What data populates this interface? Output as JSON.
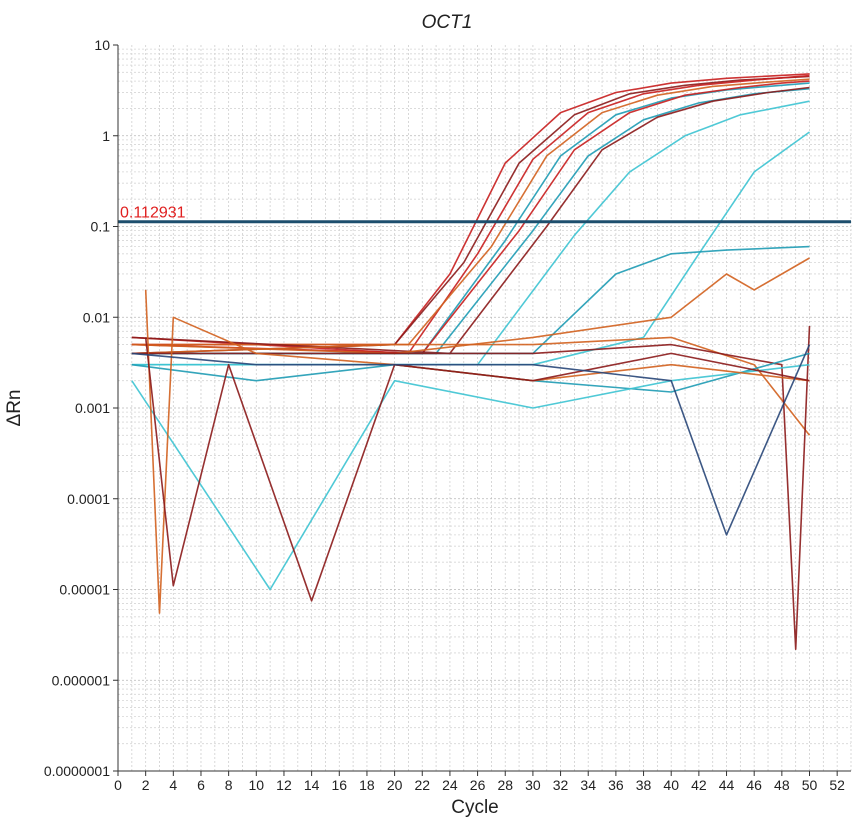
{
  "chart_data": {
    "type": "line",
    "title": "OCT1",
    "xlabel": "Cycle",
    "ylabel": "ΔRn",
    "xlim": [
      0,
      53
    ],
    "ylim": [
      1e-07,
      10
    ],
    "y_scale": "log",
    "x_ticks": [
      "0",
      "2",
      "4",
      "6",
      "8",
      "10",
      "12",
      "14",
      "16",
      "18",
      "20",
      "22",
      "24",
      "26",
      "28",
      "30",
      "32",
      "34",
      "36",
      "38",
      "40",
      "42",
      "44",
      "46",
      "48",
      "50",
      "52"
    ],
    "y_ticks": [
      {
        "value": 10,
        "label": "10"
      },
      {
        "value": 1,
        "label": "1"
      },
      {
        "value": 0.1,
        "label": "0.1"
      },
      {
        "value": 0.01,
        "label": "0.01"
      },
      {
        "value": 0.001,
        "label": "0.001"
      },
      {
        "value": 0.0001,
        "label": "0.0001"
      },
      {
        "value": 1e-05,
        "label": "0.00001"
      },
      {
        "value": 1e-06,
        "label": "0.000001"
      },
      {
        "value": 1e-07,
        "label": "0.0000001"
      }
    ],
    "grid": true,
    "threshold": {
      "value": 0.112931,
      "label": "0.112931",
      "color": "#1e4f6e"
    },
    "colors": {
      "red": "#c81e1e",
      "darkred": "#8b1a1a",
      "orange": "#d2601e",
      "teal": "#1e9bb4",
      "cyan": "#3cc3d2",
      "navy": "#284678"
    },
    "series": [
      {
        "color": "red",
        "x": [
          1,
          20,
          24,
          28,
          32,
          36,
          40,
          44,
          50
        ],
        "y": [
          0.005,
          0.005,
          0.03,
          0.5,
          1.8,
          3.0,
          3.8,
          4.3,
          4.8
        ]
      },
      {
        "color": "darkred",
        "x": [
          1,
          20,
          25,
          29,
          33,
          37,
          41,
          45,
          50
        ],
        "y": [
          0.004,
          0.005,
          0.04,
          0.5,
          1.7,
          2.9,
          3.6,
          4.1,
          4.5
        ]
      },
      {
        "color": "red",
        "x": [
          1,
          21,
          26,
          30,
          34,
          38,
          42,
          46,
          50
        ],
        "y": [
          0.006,
          0.004,
          0.05,
          0.55,
          1.8,
          2.9,
          3.6,
          4.1,
          4.6
        ]
      },
      {
        "color": "orange",
        "x": [
          1,
          21,
          27,
          31,
          35,
          39,
          43,
          47,
          50
        ],
        "y": [
          0.005,
          0.005,
          0.06,
          0.6,
          1.8,
          2.8,
          3.5,
          3.9,
          4.2
        ]
      },
      {
        "color": "teal",
        "x": [
          1,
          22,
          28,
          32,
          36,
          40,
          44,
          48,
          50
        ],
        "y": [
          0.004,
          0.004,
          0.07,
          0.6,
          1.7,
          2.6,
          3.2,
          3.6,
          3.8
        ]
      },
      {
        "color": "red",
        "x": [
          1,
          22,
          29,
          33,
          37,
          41,
          45,
          48,
          50
        ],
        "y": [
          0.005,
          0.004,
          0.09,
          0.7,
          1.8,
          2.8,
          3.4,
          3.8,
          4.0
        ]
      },
      {
        "color": "teal",
        "x": [
          1,
          23,
          30,
          34,
          38,
          42,
          46,
          50
        ],
        "y": [
          0.004,
          0.004,
          0.09,
          0.6,
          1.5,
          2.3,
          2.9,
          3.3
        ]
      },
      {
        "color": "darkred",
        "x": [
          1,
          24,
          31,
          35,
          39,
          43,
          47,
          50
        ],
        "y": [
          0.006,
          0.004,
          0.1,
          0.7,
          1.6,
          2.4,
          3.0,
          3.4
        ]
      },
      {
        "color": "cyan",
        "x": [
          1,
          26,
          33,
          37,
          41,
          45,
          50
        ],
        "y": [
          0.003,
          0.003,
          0.08,
          0.4,
          1.0,
          1.7,
          2.4
        ]
      },
      {
        "color": "cyan",
        "x": [
          1,
          30,
          38,
          42,
          46,
          50
        ],
        "y": [
          0.003,
          0.003,
          0.006,
          0.05,
          0.4,
          1.1
        ]
      },
      {
        "color": "teal",
        "x": [
          1,
          30,
          36,
          40,
          44,
          50
        ],
        "y": [
          0.004,
          0.004,
          0.03,
          0.05,
          0.055,
          0.06
        ]
      },
      {
        "color": "orange",
        "x": [
          1,
          20,
          30,
          40,
          44,
          46,
          50
        ],
        "y": [
          0.005,
          0.004,
          0.006,
          0.01,
          0.03,
          0.02,
          0.045
        ]
      },
      {
        "color": "orange",
        "x": [
          1,
          20,
          30,
          40,
          46,
          50
        ],
        "y": [
          0.004,
          0.005,
          0.005,
          0.006,
          0.003,
          0.0005
        ]
      },
      {
        "color": "darkred",
        "x": [
          1,
          20,
          30,
          40,
          48,
          49,
          50
        ],
        "y": [
          0.004,
          0.004,
          0.004,
          0.005,
          0.003,
          2.2e-06,
          0.008
        ]
      },
      {
        "color": "teal",
        "x": [
          1,
          10,
          20,
          30,
          40,
          50
        ],
        "y": [
          0.003,
          0.002,
          0.003,
          0.002,
          0.0015,
          0.004
        ]
      },
      {
        "color": "cyan",
        "x": [
          1,
          11,
          20,
          30,
          40,
          50
        ],
        "y": [
          0.002,
          1e-05,
          0.002,
          0.001,
          0.002,
          0.003
        ]
      },
      {
        "color": "orange",
        "x": [
          2,
          3,
          4,
          10,
          20,
          30,
          40,
          50
        ],
        "y": [
          0.02,
          5.5e-06,
          0.01,
          0.004,
          0.003,
          0.002,
          0.003,
          0.002
        ]
      },
      {
        "color": "darkred",
        "x": [
          2,
          4,
          8,
          14,
          20,
          30,
          40,
          50
        ],
        "y": [
          0.006,
          1.1e-05,
          0.003,
          7.5e-06,
          0.003,
          0.002,
          0.004,
          0.002
        ]
      },
      {
        "color": "navy",
        "x": [
          1,
          10,
          20,
          30,
          40,
          44,
          50
        ],
        "y": [
          0.004,
          0.003,
          0.003,
          0.003,
          0.002,
          4e-05,
          0.005
        ]
      }
    ]
  }
}
